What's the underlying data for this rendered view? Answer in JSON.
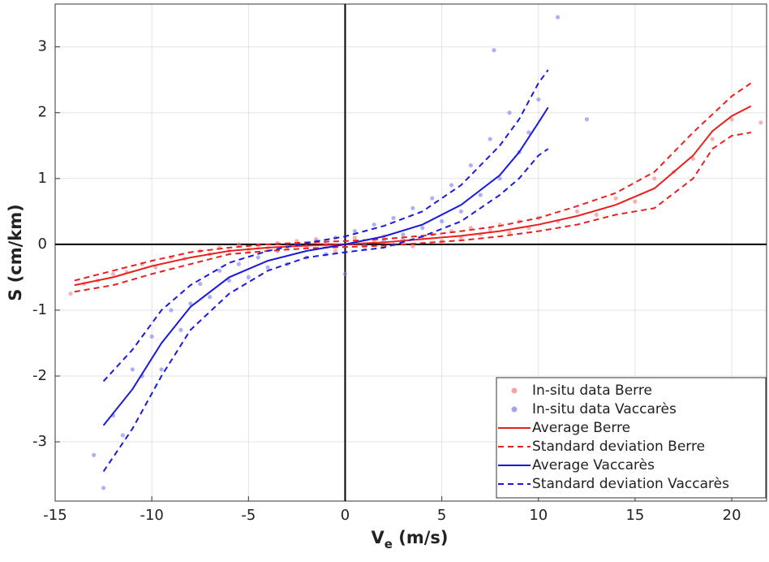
{
  "chart_data": {
    "type": "scatter",
    "xlabel": {
      "main": "V",
      "sub": "e",
      "rest": " (m/s)"
    },
    "ylabel": "S (cm/km)",
    "xlim": [
      -15,
      21.8
    ],
    "ylim": [
      -3.9,
      3.65
    ],
    "xticks": [
      -15,
      -10,
      -5,
      0,
      5,
      10,
      15,
      20
    ],
    "yticks": [
      -3,
      -2,
      -1,
      0,
      1,
      2,
      3
    ],
    "grid": true,
    "legend": "lower right",
    "series": [
      {
        "name": "In-situ data Berre",
        "color": "#f08080",
        "kind": "scatter",
        "x": [
          -14.2,
          -13.5,
          -12.8,
          -12,
          -11.3,
          -10.5,
          -9.8,
          -9,
          -8.3,
          -7.5,
          -7,
          -6.5,
          -6,
          -5.5,
          -5,
          -4.5,
          -4,
          -3.5,
          -3,
          -2.5,
          -2,
          -1.5,
          -1,
          -0.5,
          0.5,
          1,
          1.5,
          2,
          2.5,
          3,
          3.5,
          4,
          4.5,
          5,
          5.5,
          6,
          6.5,
          7,
          7.5,
          8,
          8.5,
          9,
          9.5,
          10,
          11,
          12,
          13,
          14,
          15,
          16,
          17,
          18,
          19,
          20,
          21.5
        ],
        "values": [
          -0.75,
          -0.6,
          -0.55,
          -0.45,
          -0.42,
          -0.3,
          -0.35,
          -0.2,
          -0.22,
          -0.1,
          -0.15,
          -0.05,
          -0.1,
          0.0,
          -0.08,
          -0.02,
          -0.06,
          0.02,
          -0.04,
          0.05,
          -0.03,
          0.08,
          0.0,
          -0.1,
          0.1,
          -0.05,
          0.04,
          0.12,
          0.0,
          0.08,
          -0.03,
          0.1,
          0.15,
          0.05,
          0.2,
          0.1,
          0.25,
          0.15,
          0.22,
          0.3,
          0.18,
          0.35,
          0.25,
          0.4,
          0.35,
          0.5,
          0.45,
          0.7,
          0.65,
          1.0,
          1.1,
          1.3,
          1.6,
          1.9,
          1.85
        ]
      },
      {
        "name": "In-situ data Vaccarès",
        "color": "#7b7bf0",
        "kind": "scatter",
        "x": [
          -13,
          -12.5,
          -12,
          -11.5,
          -11,
          -10.5,
          -10,
          -9.5,
          -9,
          -8.5,
          -8,
          -7.5,
          -7,
          -6.5,
          -6,
          -5.5,
          -5,
          -4.5,
          -4,
          -3.5,
          -3,
          -2.5,
          -2,
          -1.5,
          -1,
          -0.5,
          0,
          0.5,
          1,
          1.5,
          2,
          2.5,
          3,
          3.5,
          4,
          4.5,
          5,
          5.5,
          6,
          6.5,
          7,
          7.5,
          8,
          8.5,
          9,
          9.5,
          10,
          7.7,
          11,
          12.5
        ],
        "values": [
          -3.2,
          -3.7,
          -2.6,
          -2.9,
          -1.9,
          -2.0,
          -1.4,
          -1.9,
          -1.0,
          -1.3,
          -0.9,
          -0.6,
          -0.8,
          -0.4,
          -0.55,
          -0.3,
          -0.5,
          -0.2,
          -0.35,
          -0.1,
          -0.3,
          0.0,
          -0.2,
          0.05,
          -0.15,
          0.1,
          -0.45,
          0.2,
          0.0,
          0.3,
          0.05,
          0.4,
          0.15,
          0.55,
          0.25,
          0.7,
          0.35,
          0.9,
          0.5,
          1.2,
          0.75,
          1.6,
          1.0,
          2.0,
          1.4,
          1.7,
          2.2,
          2.95,
          3.45,
          1.9
        ]
      },
      {
        "name": "Average Berre",
        "color": "#e8201e",
        "kind": "line",
        "dash": false,
        "x": [
          -14,
          -12,
          -10,
          -8,
          -6,
          -4,
          -2,
          0,
          2,
          4,
          6,
          8,
          10,
          12,
          14,
          16,
          18,
          19,
          20,
          21
        ],
        "values": [
          -0.62,
          -0.5,
          -0.33,
          -0.2,
          -0.1,
          -0.05,
          -0.02,
          0,
          0.03,
          0.08,
          0.13,
          0.2,
          0.3,
          0.43,
          0.6,
          0.85,
          1.35,
          1.72,
          1.95,
          2.1
        ]
      },
      {
        "name": "Standard deviation Berre",
        "color": "#e8201e",
        "kind": "line",
        "dash": true,
        "x": [
          -14,
          -12,
          -10,
          -8,
          -6,
          -4,
          -2,
          0,
          2,
          4,
          6,
          8,
          10,
          12,
          14,
          16,
          18,
          20,
          21
        ],
        "values": [
          -0.55,
          -0.4,
          -0.25,
          -0.12,
          -0.05,
          0.0,
          0.03,
          0.05,
          0.08,
          0.13,
          0.2,
          0.28,
          0.4,
          0.58,
          0.78,
          1.1,
          1.7,
          2.25,
          2.45
        ]
      },
      {
        "color": "#e8201e",
        "kind": "line",
        "dash": true,
        "x": [
          -14,
          -12,
          -10,
          -8,
          -6,
          -4,
          -2,
          0,
          2,
          4,
          6,
          8,
          10,
          12,
          14,
          16,
          18,
          19,
          20,
          21
        ],
        "values": [
          -0.72,
          -0.62,
          -0.45,
          -0.3,
          -0.15,
          -0.1,
          -0.06,
          -0.04,
          -0.02,
          0.02,
          0.06,
          0.12,
          0.2,
          0.3,
          0.45,
          0.55,
          1.0,
          1.45,
          1.65,
          1.7
        ]
      },
      {
        "name": "Average Vaccarès",
        "color": "#1a1ad8",
        "kind": "line",
        "dash": false,
        "x": [
          -12.5,
          -11,
          -9.5,
          -8,
          -6,
          -4,
          -2,
          0,
          2,
          4,
          6,
          8,
          9,
          10,
          10.5
        ],
        "values": [
          -2.75,
          -2.2,
          -1.5,
          -0.95,
          -0.5,
          -0.25,
          -0.1,
          0,
          0.12,
          0.3,
          0.6,
          1.05,
          1.4,
          1.85,
          2.08
        ]
      },
      {
        "name": "Standard deviation Vaccarès",
        "color": "#1a1ad8",
        "kind": "line",
        "dash": true,
        "x": [
          -12.5,
          -11,
          -9.5,
          -8,
          -6,
          -4,
          -2,
          0,
          2,
          4,
          6,
          8,
          9,
          10,
          10.5
        ],
        "values": [
          -2.08,
          -1.6,
          -1.0,
          -0.62,
          -0.28,
          -0.1,
          0.02,
          0.12,
          0.28,
          0.5,
          0.9,
          1.5,
          1.9,
          2.45,
          2.65
        ]
      },
      {
        "color": "#1a1ad8",
        "kind": "line",
        "dash": true,
        "x": [
          -12.5,
          -11,
          -9.5,
          -8,
          -6,
          -4,
          -2,
          0,
          2,
          4,
          6,
          8,
          9,
          10,
          10.5
        ],
        "values": [
          -3.45,
          -2.8,
          -2.0,
          -1.3,
          -0.75,
          -0.4,
          -0.2,
          -0.12,
          -0.05,
          0.12,
          0.35,
          0.75,
          1.0,
          1.35,
          1.45
        ]
      }
    ]
  }
}
